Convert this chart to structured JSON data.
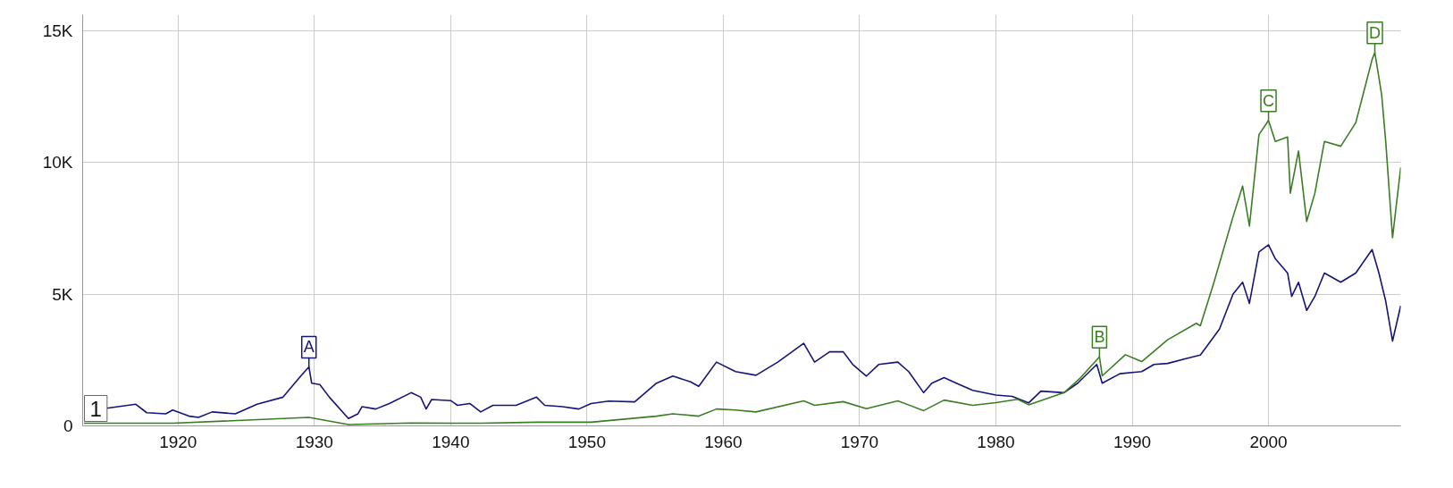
{
  "chart_data": {
    "type": "line",
    "xlim": [
      1913,
      2009.7
    ],
    "ylim": [
      0,
      15600
    ],
    "xticks": [
      1920,
      1930,
      1940,
      1950,
      1960,
      1970,
      1980,
      1990,
      2000
    ],
    "yticks": [
      0,
      {
        "value": 5000,
        "label": "5K"
      },
      {
        "value": 10000,
        "label": "10K"
      },
      {
        "value": 15000,
        "label": "15K"
      }
    ],
    "grid": true,
    "marker": "none",
    "line_style": "solid",
    "series": [
      {
        "color": "#14147a",
        "x": [
          1913.1,
          1916.9,
          1917.7,
          1919.1,
          1919.6,
          1920.8,
          1921.5,
          1922.5,
          1924.2,
          1925.8,
          1927.7,
          1929.0,
          1929.6,
          1929.8,
          1930.4,
          1931.1,
          1932.5,
          1933.2,
          1933.5,
          1934.5,
          1935.5,
          1937.1,
          1937.8,
          1938.2,
          1938.6,
          1940.0,
          1940.5,
          1941.4,
          1942.2,
          1943.1,
          1944.8,
          1946.3,
          1946.9,
          1948.2,
          1949.4,
          1950.3,
          1951.6,
          1953.5,
          1955.1,
          1956.3,
          1957.6,
          1958.2,
          1959.5,
          1960.9,
          1962.4,
          1964.0,
          1965.9,
          1966.7,
          1967.8,
          1968.8,
          1969.5,
          1970.5,
          1971.4,
          1972.8,
          1973.6,
          1974.7,
          1975.3,
          1976.2,
          1977.1,
          1978.3,
          1980.0,
          1981.2,
          1982.4,
          1983.3,
          1985.0,
          1986.0,
          1987.4,
          1987.8,
          1989.1,
          1990.7,
          1991.6,
          1992.6,
          1994.0,
          1995.0,
          1996.4,
          1997.4,
          1998.1,
          1998.6,
          1999.3,
          2000.0,
          2000.5,
          2001.4,
          2001.7,
          2002.2,
          2002.8,
          2003.4,
          2004.1,
          2005.3,
          2006.4,
          2007.6,
          2008.1,
          2008.6,
          2009.1,
          2009.7
        ],
        "values": [
          550,
          820,
          500,
          460,
          600,
          370,
          320,
          530,
          460,
          820,
          1090,
          1890,
          2240,
          1620,
          1570,
          1090,
          280,
          460,
          730,
          640,
          850,
          1260,
          1090,
          640,
          1000,
          960,
          780,
          850,
          530,
          780,
          780,
          1090,
          780,
          730,
          640,
          850,
          940,
          910,
          1620,
          1890,
          1670,
          1500,
          2420,
          2060,
          1920,
          2420,
          3130,
          2420,
          2810,
          2810,
          2330,
          1890,
          2330,
          2420,
          2060,
          1260,
          1620,
          1830,
          1620,
          1350,
          1170,
          1120,
          870,
          1320,
          1260,
          1620,
          2330,
          1620,
          1980,
          2060,
          2330,
          2370,
          2560,
          2690,
          3670,
          5000,
          5450,
          4650,
          6600,
          6870,
          6340,
          5800,
          4910,
          5450,
          4380,
          4910,
          5800,
          5450,
          5800,
          6690,
          5800,
          4730,
          3220,
          4560
        ]
      },
      {
        "color": "#3a7d22",
        "x": [
          1913.1,
          1919.6,
          1929.6,
          1932.5,
          1937.1,
          1942.2,
          1946.3,
          1950.3,
          1955.1,
          1956.3,
          1958.2,
          1959.5,
          1960.9,
          1962.4,
          1965.9,
          1966.7,
          1968.8,
          1970.5,
          1972.8,
          1974.7,
          1976.2,
          1978.3,
          1980.0,
          1981.6,
          1982.4,
          1985.0,
          1986.2,
          1987.6,
          1987.8,
          1989.5,
          1990.7,
          1992.6,
          1994.7,
          1995.0,
          1996.0,
          1997.4,
          1998.1,
          1998.6,
          1999.3,
          2000.0,
          2000.5,
          2001.4,
          2001.6,
          2002.2,
          2002.8,
          2003.4,
          2004.1,
          2005.3,
          2006.4,
          2007.6,
          2007.8,
          2008.3,
          2008.6,
          2009.1,
          2009.7
        ],
        "values": [
          100,
          100,
          320,
          50,
          110,
          100,
          140,
          140,
          370,
          460,
          370,
          640,
          600,
          530,
          950,
          780,
          920,
          650,
          950,
          580,
          980,
          780,
          880,
          1010,
          800,
          1260,
          1820,
          2620,
          1900,
          2700,
          2440,
          3270,
          3890,
          3800,
          5450,
          7940,
          9100,
          7580,
          11050,
          11590,
          10790,
          10960,
          8830,
          10430,
          7760,
          8830,
          10790,
          10610,
          11500,
          13900,
          14170,
          12570,
          10790,
          7140,
          9810
        ]
      }
    ],
    "annotations": [
      {
        "text": "A",
        "x": 1929.6,
        "y": 2240
      },
      {
        "text": "B",
        "x": 1987.6,
        "y": 2620
      },
      {
        "text": "C",
        "x": 2000.0,
        "y": 11590
      },
      {
        "text": "D",
        "x": 2007.8,
        "y": 14170
      },
      "1"
    ]
  }
}
